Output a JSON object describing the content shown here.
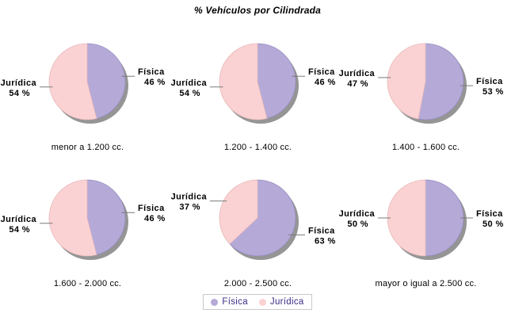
{
  "title": "% Vehículos por Cilindrada",
  "colors": {
    "slice_fills": [
      "#b5aad7",
      "#fbd2d3"
    ],
    "slice_strokes": [
      "#958cc1",
      "#e6b9bb"
    ],
    "shadow": "#959595",
    "leader_line": "#7a7a7a",
    "label_text": "#000000",
    "legend_text": "#3b2e86",
    "legend_border": "#c9c9c9",
    "background": "#ffffff"
  },
  "legend": {
    "labels": [
      "Física",
      "Jurídica"
    ]
  },
  "chart_data": [
    {
      "type": "pie",
      "title": "menor a 1.200 cc.",
      "labels": [
        "Física",
        "Jurídica"
      ],
      "values": [
        46,
        54
      ],
      "value_labels": [
        "46 %",
        "54 %"
      ]
    },
    {
      "type": "pie",
      "title": "1.200 - 1.400 cc.",
      "labels": [
        "Física",
        "Jurídica"
      ],
      "values": [
        46,
        54
      ],
      "value_labels": [
        "46 %",
        "54 %"
      ]
    },
    {
      "type": "pie",
      "title": "1.400 - 1.600 cc.",
      "labels": [
        "Física",
        "Jurídica"
      ],
      "values": [
        53,
        47
      ],
      "value_labels": [
        "53 %",
        "47 %"
      ]
    },
    {
      "type": "pie",
      "title": "1.600 - 2.000 cc.",
      "labels": [
        "Física",
        "Jurídica"
      ],
      "values": [
        46,
        54
      ],
      "value_labels": [
        "46 %",
        "54 %"
      ]
    },
    {
      "type": "pie",
      "title": "2.000 - 2.500 cc.",
      "labels": [
        "Física",
        "Jurídica"
      ],
      "values": [
        63,
        37
      ],
      "value_labels": [
        "63 %",
        "37 %"
      ]
    },
    {
      "type": "pie",
      "title": "mayor o igual a 2.500 cc.",
      "labels": [
        "Física",
        "Jurídica"
      ],
      "values": [
        50,
        50
      ],
      "value_labels": [
        "50 %",
        "50 %"
      ]
    }
  ]
}
